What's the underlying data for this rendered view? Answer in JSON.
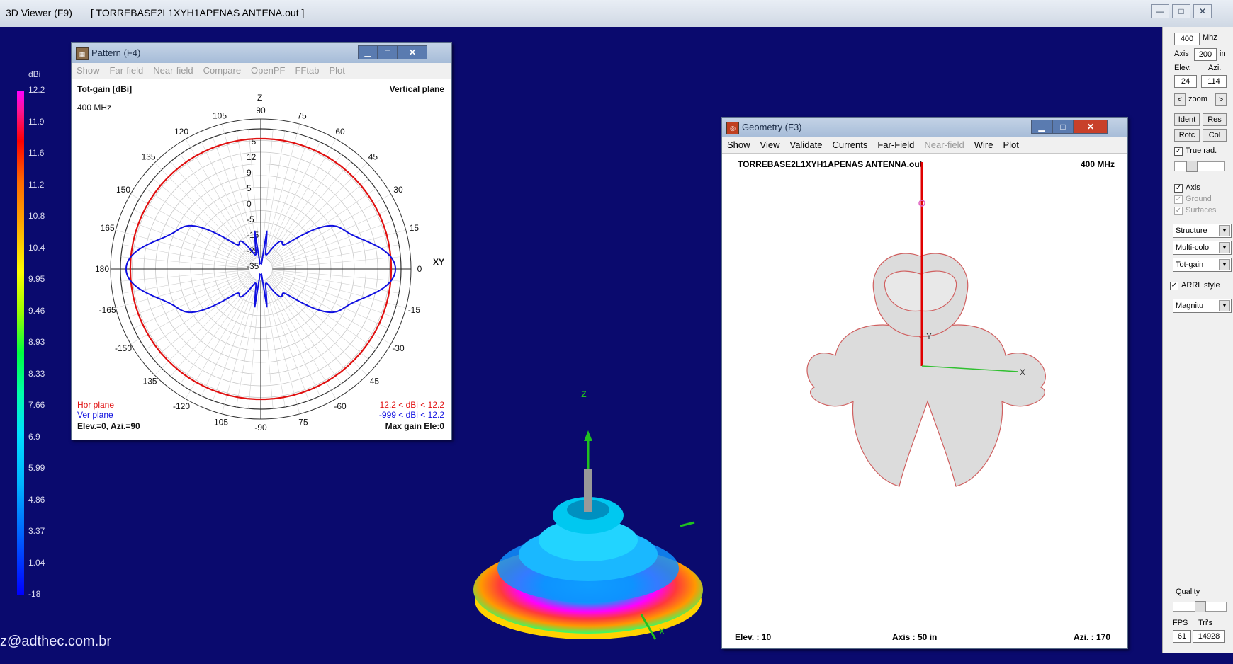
{
  "app": {
    "title": "3D Viewer (F9)",
    "file_title": "[ TORREBASE2L1XYH1APENAS ANTENA.out ]",
    "window_buttons": [
      "—",
      "□",
      "✕"
    ]
  },
  "legend": {
    "unit": "dBi",
    "values": [
      "12.2",
      "11.9",
      "11.6",
      "11.2",
      "10.8",
      "10.4",
      "9.95",
      "9.46",
      "8.93",
      "8.33",
      "7.66",
      "6.9",
      "5.99",
      "4.86",
      "3.37",
      "1.04",
      "-18"
    ]
  },
  "footer_email": "z@adthec.com.br",
  "pattern_window": {
    "title": "Pattern  (F4)",
    "menu": [
      "Show",
      "Far-field",
      "Near-field",
      "Compare",
      "OpenPF",
      "FFtab",
      "Plot"
    ],
    "header_left": "Tot-gain [dBi]",
    "header_right": "Vertical plane",
    "freq": "400 MHz",
    "axis_z": "Z",
    "axis_xy": "XY",
    "angle_labels": [
      "90",
      "105",
      "75",
      "120",
      "60",
      "135",
      "45",
      "150",
      "30",
      "165",
      "15",
      "180",
      "0",
      "-165",
      "-15",
      "-150",
      "-30",
      "-135",
      "-45",
      "-120",
      "-60",
      "-105",
      "-90",
      "-75"
    ],
    "ring_labels": [
      "15",
      "12",
      "9",
      "5",
      "0",
      "-5",
      "-15",
      "-25",
      "-35"
    ],
    "legend_hor": "Hor plane",
    "legend_ver": "Ver plane",
    "range_hor": "12.2 < dBi < 12.2",
    "range_ver": "-999 < dBi < 12.2",
    "footer_left": "Elev.=0, Azi.=90",
    "footer_right": "Max gain Ele:0",
    "colors": {
      "hor": "#e01010",
      "ver": "#1010e0"
    }
  },
  "geometry_window": {
    "title": "Geometry  (F3)",
    "menu": [
      "Show",
      "View",
      "Validate",
      "Currents",
      "Far-Field",
      "Near-field",
      "Wire",
      "Plot"
    ],
    "filename": "TORREBASE2L1XYH1APENAS ANTENNA.out",
    "freq": "400 MHz",
    "axis_y": "Y",
    "axis_x": "X",
    "footer_left": "Elev. : 10",
    "footer_mid": "Axis : 50 in",
    "footer_right": "Azi. : 170"
  },
  "scene": {
    "axis_z": "z",
    "axis_x": "x"
  },
  "right_panel": {
    "freq_value": "400",
    "freq_unit": "Mhz",
    "axis_label": "Axis",
    "axis_value": "200",
    "axis_unit": "in",
    "elev_label": "Elev.",
    "azi_label": "Azi.",
    "elev_value": "24",
    "azi_value": "114",
    "zoom_left": "<",
    "zoom_label": "zoom",
    "zoom_right": ">",
    "ident": "Ident",
    "res": "Res",
    "rotc": "Rotc",
    "col": "Col",
    "true_rad": "True rad.",
    "axis_chk": "Axis",
    "ground": "Ground",
    "surfaces": "Surfaces",
    "structure": "Structure",
    "multicolor": "Multi-colo",
    "totgain": "Tot-gain",
    "arrl": "ARRL style",
    "magnitude": "Magnitu",
    "quality": "Quality",
    "fps_label": "FPS",
    "tris_label": "Tri's",
    "fps_value": "61",
    "tris_value": "14928"
  }
}
